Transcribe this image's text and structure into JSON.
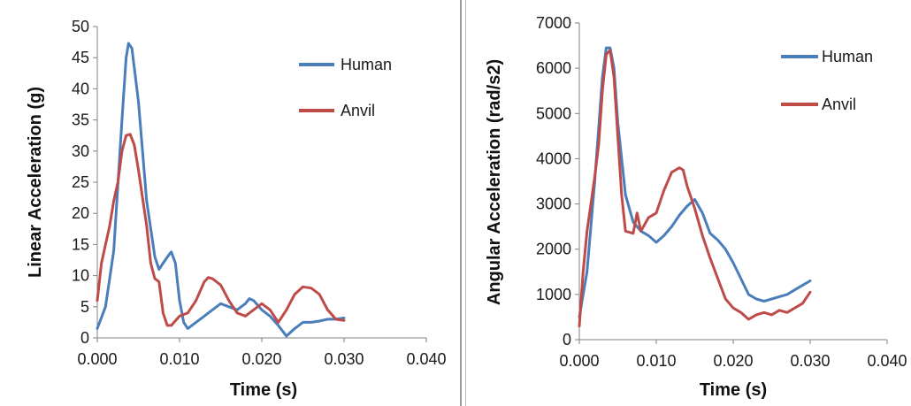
{
  "chart_data": [
    {
      "type": "line",
      "xlabel": "Time (s)",
      "ylabel": "Linear Acceleration (g)",
      "xlim": [
        0,
        0.04
      ],
      "ylim": [
        0,
        50
      ],
      "xticks": [
        "0.000",
        "0.010",
        "0.020",
        "0.030",
        "0.040"
      ],
      "yticks": [
        "0",
        "5",
        "10",
        "15",
        "20",
        "25",
        "30",
        "35",
        "40",
        "45",
        "50"
      ],
      "legend_placement": "top-right",
      "grid": false,
      "series": [
        {
          "name": "Human",
          "color": "#4a7ebb",
          "points": [
            [
              0.0,
              1.5
            ],
            [
              0.001,
              5
            ],
            [
              0.002,
              14
            ],
            [
              0.003,
              35
            ],
            [
              0.0035,
              45
            ],
            [
              0.0038,
              47.3
            ],
            [
              0.0042,
              46.5
            ],
            [
              0.005,
              38
            ],
            [
              0.006,
              22
            ],
            [
              0.007,
              13
            ],
            [
              0.0075,
              11
            ],
            [
              0.008,
              12
            ],
            [
              0.0088,
              13.5
            ],
            [
              0.009,
              13.8
            ],
            [
              0.0095,
              12
            ],
            [
              0.01,
              6
            ],
            [
              0.0105,
              2.5
            ],
            [
              0.011,
              1.5
            ],
            [
              0.012,
              2.5
            ],
            [
              0.013,
              3.5
            ],
            [
              0.014,
              4.5
            ],
            [
              0.015,
              5.5
            ],
            [
              0.016,
              5
            ],
            [
              0.017,
              4.5
            ],
            [
              0.018,
              5.5
            ],
            [
              0.0185,
              6.3
            ],
            [
              0.019,
              6
            ],
            [
              0.02,
              4.5
            ],
            [
              0.021,
              3.5
            ],
            [
              0.022,
              2
            ],
            [
              0.023,
              0.3
            ],
            [
              0.024,
              1.5
            ],
            [
              0.025,
              2.5
            ],
            [
              0.026,
              2.5
            ],
            [
              0.027,
              2.7
            ],
            [
              0.028,
              3
            ],
            [
              0.029,
              3
            ],
            [
              0.03,
              3.2
            ]
          ]
        },
        {
          "name": "Anvil",
          "color": "#be4b48",
          "points": [
            [
              0.0,
              6
            ],
            [
              0.0005,
              12
            ],
            [
              0.001,
              15
            ],
            [
              0.0015,
              18
            ],
            [
              0.002,
              22
            ],
            [
              0.0025,
              25
            ],
            [
              0.003,
              30
            ],
            [
              0.0035,
              32.5
            ],
            [
              0.004,
              32.7
            ],
            [
              0.0045,
              31
            ],
            [
              0.005,
              27
            ],
            [
              0.006,
              18
            ],
            [
              0.0065,
              12
            ],
            [
              0.007,
              9.5
            ],
            [
              0.0075,
              9
            ],
            [
              0.008,
              4
            ],
            [
              0.0085,
              2
            ],
            [
              0.009,
              2
            ],
            [
              0.01,
              3.5
            ],
            [
              0.011,
              4
            ],
            [
              0.012,
              6
            ],
            [
              0.013,
              9
            ],
            [
              0.0135,
              9.7
            ],
            [
              0.014,
              9.5
            ],
            [
              0.015,
              8.5
            ],
            [
              0.016,
              6
            ],
            [
              0.017,
              4
            ],
            [
              0.018,
              3.5
            ],
            [
              0.019,
              4.5
            ],
            [
              0.02,
              5.5
            ],
            [
              0.021,
              4.5
            ],
            [
              0.022,
              2.5
            ],
            [
              0.023,
              4.5
            ],
            [
              0.024,
              7
            ],
            [
              0.025,
              8.2
            ],
            [
              0.026,
              8
            ],
            [
              0.027,
              7
            ],
            [
              0.028,
              4.5
            ],
            [
              0.029,
              3
            ],
            [
              0.03,
              2.8
            ]
          ]
        }
      ]
    },
    {
      "type": "line",
      "xlabel": "Time (s)",
      "ylabel": "Angular Acceleration (rad/s2)",
      "xlim": [
        0,
        0.04
      ],
      "ylim": [
        0,
        7000
      ],
      "xticks": [
        "0.000",
        "0.010",
        "0.020",
        "0.030",
        "0.040"
      ],
      "yticks": [
        "0",
        "1000",
        "2000",
        "3000",
        "4000",
        "5000",
        "6000",
        "7000"
      ],
      "legend_placement": "top-right",
      "grid": false,
      "series": [
        {
          "name": "Human",
          "color": "#4a7ebb",
          "points": [
            [
              0.0,
              500
            ],
            [
              0.001,
              1500
            ],
            [
              0.002,
              3500
            ],
            [
              0.003,
              5800
            ],
            [
              0.0035,
              6450
            ],
            [
              0.004,
              6450
            ],
            [
              0.0045,
              6000
            ],
            [
              0.005,
              4800
            ],
            [
              0.006,
              3200
            ],
            [
              0.007,
              2600
            ],
            [
              0.008,
              2400
            ],
            [
              0.009,
              2300
            ],
            [
              0.01,
              2150
            ],
            [
              0.011,
              2300
            ],
            [
              0.012,
              2500
            ],
            [
              0.013,
              2750
            ],
            [
              0.014,
              2950
            ],
            [
              0.015,
              3100
            ],
            [
              0.016,
              2800
            ],
            [
              0.017,
              2350
            ],
            [
              0.018,
              2200
            ],
            [
              0.019,
              2000
            ],
            [
              0.02,
              1700
            ],
            [
              0.021,
              1350
            ],
            [
              0.022,
              1000
            ],
            [
              0.023,
              900
            ],
            [
              0.024,
              850
            ],
            [
              0.025,
              900
            ],
            [
              0.026,
              950
            ],
            [
              0.027,
              1000
            ],
            [
              0.028,
              1100
            ],
            [
              0.029,
              1200
            ],
            [
              0.03,
              1300
            ]
          ]
        },
        {
          "name": "Anvil",
          "color": "#be4b48",
          "points": [
            [
              0.0,
              300
            ],
            [
              0.0005,
              1500
            ],
            [
              0.001,
              2400
            ],
            [
              0.0015,
              3000
            ],
            [
              0.002,
              3600
            ],
            [
              0.0025,
              4300
            ],
            [
              0.003,
              5500
            ],
            [
              0.0035,
              6300
            ],
            [
              0.004,
              6400
            ],
            [
              0.0045,
              5800
            ],
            [
              0.005,
              4500
            ],
            [
              0.0055,
              3200
            ],
            [
              0.006,
              2400
            ],
            [
              0.007,
              2350
            ],
            [
              0.0075,
              2800
            ],
            [
              0.008,
              2400
            ],
            [
              0.009,
              2700
            ],
            [
              0.01,
              2800
            ],
            [
              0.011,
              3300
            ],
            [
              0.012,
              3700
            ],
            [
              0.013,
              3800
            ],
            [
              0.0135,
              3750
            ],
            [
              0.014,
              3400
            ],
            [
              0.015,
              2900
            ],
            [
              0.016,
              2300
            ],
            [
              0.017,
              1800
            ],
            [
              0.018,
              1350
            ],
            [
              0.019,
              900
            ],
            [
              0.02,
              700
            ],
            [
              0.021,
              600
            ],
            [
              0.022,
              450
            ],
            [
              0.023,
              550
            ],
            [
              0.024,
              600
            ],
            [
              0.025,
              550
            ],
            [
              0.026,
              650
            ],
            [
              0.027,
              600
            ],
            [
              0.028,
              700
            ],
            [
              0.029,
              800
            ],
            [
              0.03,
              1050
            ]
          ]
        }
      ]
    }
  ]
}
